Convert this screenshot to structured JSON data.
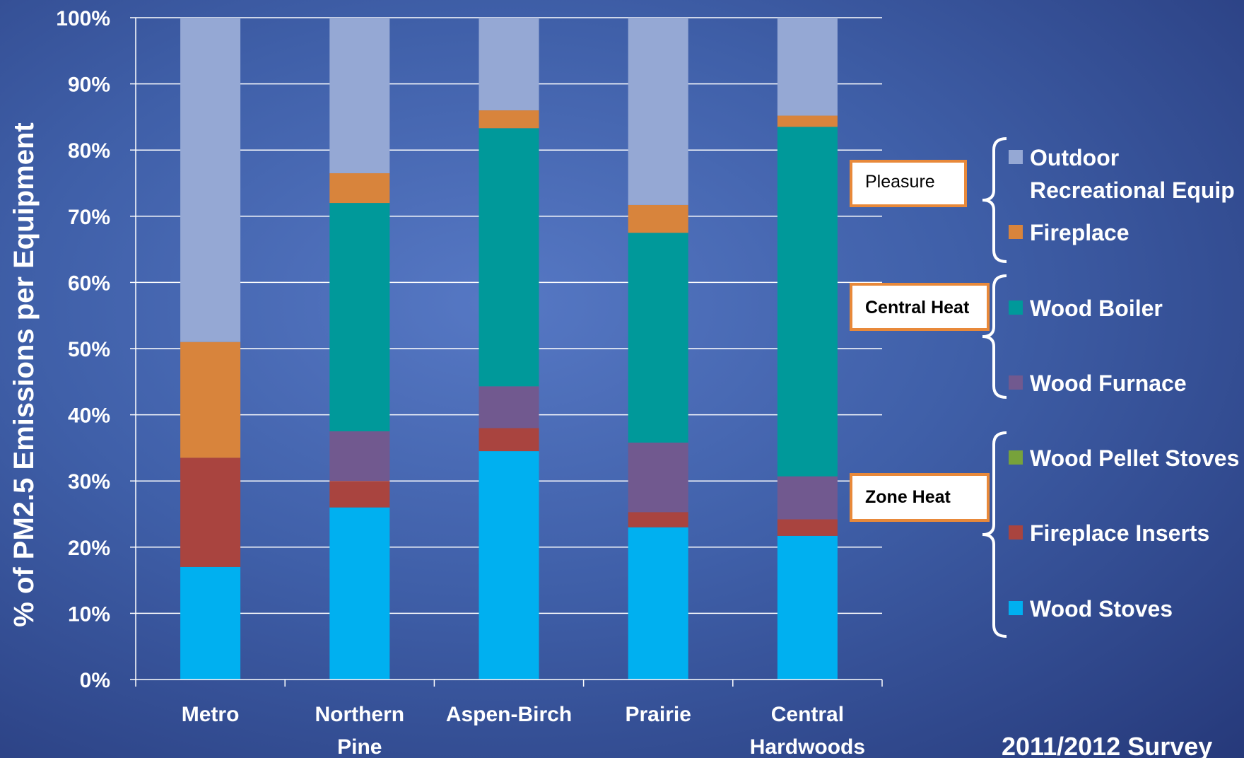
{
  "chart_data": {
    "type": "bar",
    "stacked": true,
    "title": "",
    "xlabel": "",
    "ylabel": "% of PM2.5 Emissions per Equipment",
    "ylim": [
      0,
      100
    ],
    "y_ticks": [
      "0%",
      "10%",
      "20%",
      "30%",
      "40%",
      "50%",
      "60%",
      "70%",
      "80%",
      "90%",
      "100%"
    ],
    "grid": true,
    "categories": [
      "Metro",
      "Northern Pine",
      "Aspen-Birch",
      "Prairie",
      "Central Hardwoods"
    ],
    "category_lines": [
      [
        "Metro"
      ],
      [
        "Northern",
        "Pine"
      ],
      [
        "Aspen-Birch"
      ],
      [
        "Prairie"
      ],
      [
        "Central",
        "Hardwoods"
      ]
    ],
    "series": [
      {
        "name": "Wood Stoves",
        "color": "#00b0f0",
        "values": [
          17,
          26,
          34.5,
          23,
          21.7
        ]
      },
      {
        "name": "Fireplace Inserts",
        "color": "#a9443f",
        "values": [
          16.5,
          4,
          3.5,
          2.3,
          2.5
        ]
      },
      {
        "name": "Wood Pellet Stoves",
        "color": "#77a23b",
        "values": [
          0,
          0,
          0,
          0,
          0
        ]
      },
      {
        "name": "Wood Furnace",
        "color": "#71598f",
        "values": [
          0,
          7.5,
          6.3,
          10.5,
          6.5
        ]
      },
      {
        "name": "Wood Boiler",
        "color": "#00999a",
        "values": [
          0,
          34.5,
          39,
          31.7,
          52.8
        ]
      },
      {
        "name": "Fireplace",
        "color": "#d8843c",
        "values": [
          17.5,
          4.5,
          2.7,
          4.2,
          1.7
        ]
      },
      {
        "name": "Outdoor Recreational Equip",
        "color": "#95a8d4",
        "values": [
          49,
          23.5,
          14,
          28.3,
          14.8
        ]
      }
    ],
    "legend_placement": "right",
    "legend_order": [
      {
        "lines": [
          "Outdoor",
          "Recreational Equip"
        ],
        "color": "#95a8d4"
      },
      {
        "lines": [
          "Fireplace"
        ],
        "color": "#d8843c"
      },
      {
        "lines": [
          "Wood Boiler"
        ],
        "color": "#00999a"
      },
      {
        "lines": [
          "Wood Furnace"
        ],
        "color": "#71598f"
      },
      {
        "lines": [
          "Wood Pellet Stoves"
        ],
        "color": "#77a23b"
      },
      {
        "lines": [
          "Fireplace Inserts"
        ],
        "color": "#a9443f"
      },
      {
        "lines": [
          "Wood Stoves"
        ],
        "color": "#00b0f0"
      }
    ],
    "groups": [
      {
        "label": "Pleasure",
        "bold": false
      },
      {
        "label": "Central Heat",
        "bold": true
      },
      {
        "label": "Zone Heat",
        "bold": true
      }
    ],
    "annotation": "2011/2012 Survey"
  },
  "colors": {
    "box_border": "#e8893a",
    "box_fill": "#ffffff"
  }
}
